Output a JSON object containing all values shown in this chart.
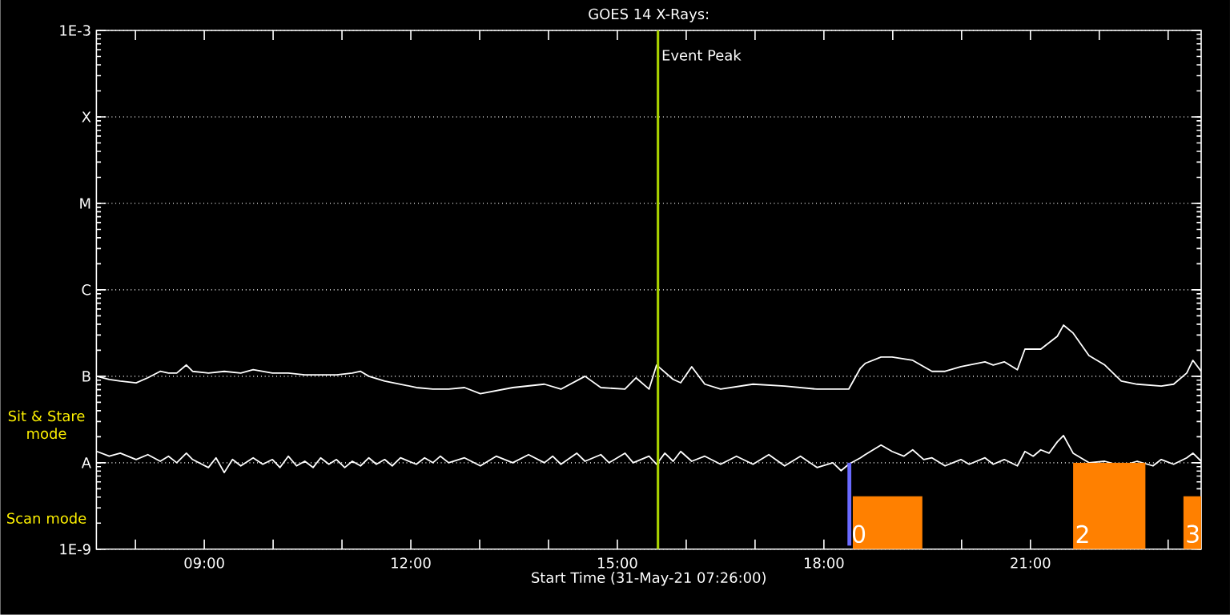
{
  "chart_data": {
    "type": "line",
    "title": "GOES 14 X-Rays:",
    "xlabel": "Start Time (31-May-21 07:26:00)",
    "log": "y",
    "grid": "y",
    "xlim": [
      7.433,
      23.48
    ],
    "ylim": [
      1e-09,
      0.001
    ],
    "xticks": [
      {
        "value": 8,
        "label": null
      },
      {
        "value": 9,
        "label": "09:00"
      },
      {
        "value": 10,
        "label": null
      },
      {
        "value": 11,
        "label": null
      },
      {
        "value": 12,
        "label": "12:00"
      },
      {
        "value": 13,
        "label": null
      },
      {
        "value": 14,
        "label": null
      },
      {
        "value": 15,
        "label": "15:00"
      },
      {
        "value": 16,
        "label": null
      },
      {
        "value": 17,
        "label": null
      },
      {
        "value": 18,
        "label": "18:00"
      },
      {
        "value": 19,
        "label": null
      },
      {
        "value": 20,
        "label": null
      },
      {
        "value": 21,
        "label": "21:00"
      },
      {
        "value": 22,
        "label": null
      },
      {
        "value": 23,
        "label": null
      }
    ],
    "yticks": [
      {
        "value": 1e-09,
        "label": "1E-9"
      },
      {
        "value": 1e-08,
        "label": "A"
      },
      {
        "value": 1e-07,
        "label": "B"
      },
      {
        "value": 1e-06,
        "label": "C"
      },
      {
        "value": 1e-05,
        "label": "M"
      },
      {
        "value": 0.0001,
        "label": "X"
      },
      {
        "value": 0.001,
        "label": "1E-3"
      }
    ],
    "series": [
      {
        "color": "#ffffff",
        "x": [
          7.44,
          7.62,
          7.78,
          8.01,
          8.18,
          8.36,
          8.48,
          8.6,
          8.74,
          8.83,
          9.06,
          9.29,
          9.53,
          9.71,
          9.99,
          10.22,
          10.46,
          10.69,
          10.92,
          11.15,
          11.27,
          11.39,
          11.62,
          11.85,
          12.08,
          12.32,
          12.55,
          12.78,
          13.01,
          13.48,
          13.94,
          14.18,
          14.53,
          14.76,
          15.11,
          15.27,
          15.46,
          15.57,
          15.81,
          15.92,
          16.08,
          16.27,
          16.5,
          16.97,
          17.43,
          17.9,
          18.36,
          18.53,
          18.6,
          18.83,
          18.99,
          19.29,
          19.57,
          19.76,
          19.99,
          20.34,
          20.46,
          20.62,
          20.81,
          20.92,
          21.15,
          21.39,
          21.48,
          21.62,
          21.85,
          22.08,
          22.32,
          22.55,
          22.9,
          23.08,
          23.27,
          23.36,
          23.48
        ],
        "values": [
          1e-07,
          9.2e-08,
          8.8e-08,
          8.4e-08,
          9.6e-08,
          1.14e-07,
          1.09e-07,
          1.09e-07,
          1.35e-07,
          1.14e-07,
          1.09e-07,
          1.14e-07,
          1.09e-07,
          1.19e-07,
          1.09e-07,
          1.09e-07,
          1.04e-07,
          1.04e-07,
          1.04e-07,
          1.09e-07,
          1.14e-07,
          1e-07,
          8.8e-08,
          8.1e-08,
          7.4e-08,
          7.1e-08,
          7.1e-08,
          7.4e-08,
          6.3e-08,
          7.4e-08,
          8.1e-08,
          7.1e-08,
          1e-07,
          7.4e-08,
          7.1e-08,
          9.6e-08,
          7.1e-08,
          1.35e-07,
          9.2e-08,
          8.4e-08,
          1.29e-07,
          8.1e-08,
          7.1e-08,
          8.1e-08,
          7.7e-08,
          7.1e-08,
          7.1e-08,
          1.24e-07,
          1.41e-07,
          1.67e-07,
          1.67e-07,
          1.53e-07,
          1.14e-07,
          1.14e-07,
          1.29e-07,
          1.47e-07,
          1.35e-07,
          1.47e-07,
          1.19e-07,
          2.06e-07,
          2.06e-07,
          2.9e-07,
          3.9e-07,
          3.16e-07,
          1.74e-07,
          1.35e-07,
          8.8e-08,
          8.1e-08,
          7.7e-08,
          8.1e-08,
          1.09e-07,
          1.53e-07,
          1.14e-07
        ]
      },
      {
        "color": "#ffffff",
        "x": [
          7.44,
          7.62,
          7.78,
          8.01,
          8.18,
          8.36,
          8.48,
          8.6,
          8.74,
          8.83,
          9.06,
          9.17,
          9.29,
          9.41,
          9.53,
          9.71,
          9.85,
          9.99,
          10.1,
          10.22,
          10.34,
          10.46,
          10.58,
          10.69,
          10.81,
          10.92,
          11.04,
          11.15,
          11.27,
          11.39,
          11.5,
          11.62,
          11.73,
          11.85,
          12.08,
          12.2,
          12.32,
          12.43,
          12.55,
          12.78,
          13.01,
          13.24,
          13.48,
          13.71,
          13.94,
          14.06,
          14.18,
          14.41,
          14.53,
          14.76,
          14.88,
          15.11,
          15.23,
          15.46,
          15.57,
          15.69,
          15.81,
          15.92,
          16.08,
          16.27,
          16.5,
          16.73,
          16.97,
          17.2,
          17.43,
          17.66,
          17.9,
          18.13,
          18.25,
          18.36,
          18.53,
          18.6,
          18.83,
          18.99,
          19.16,
          19.29,
          19.45,
          19.57,
          19.76,
          19.99,
          20.11,
          20.34,
          20.46,
          20.62,
          20.81,
          20.92,
          21.04,
          21.15,
          21.27,
          21.39,
          21.48,
          21.62,
          21.85,
          22.08,
          22.32,
          22.55,
          22.78,
          22.9,
          23.08,
          23.27,
          23.36,
          23.48
        ],
        "values": [
          1.35e-08,
          1.19e-08,
          1.29e-08,
          1.09e-08,
          1.24e-08,
          1.04e-08,
          1.19e-08,
          1e-08,
          1.29e-08,
          1.09e-08,
          8.8e-09,
          1.14e-08,
          7.7e-09,
          1.09e-08,
          9.2e-09,
          1.14e-08,
          9.6e-09,
          1.09e-08,
          8.8e-09,
          1.19e-08,
          9.2e-09,
          1.04e-08,
          8.8e-09,
          1.14e-08,
          9.6e-09,
          1.09e-08,
          8.8e-09,
          1.04e-08,
          9.2e-09,
          1.14e-08,
          9.6e-09,
          1.09e-08,
          9.2e-09,
          1.14e-08,
          9.6e-09,
          1.14e-08,
          1e-08,
          1.19e-08,
          1e-08,
          1.14e-08,
          9.2e-09,
          1.19e-08,
          1e-08,
          1.24e-08,
          1e-08,
          1.19e-08,
          9.6e-09,
          1.29e-08,
          1.04e-08,
          1.24e-08,
          1e-08,
          1.29e-08,
          1e-08,
          1.19e-08,
          9.6e-09,
          1.29e-08,
          1.04e-08,
          1.35e-08,
          1.04e-08,
          1.19e-08,
          9.6e-09,
          1.19e-08,
          9.6e-09,
          1.24e-08,
          9.2e-09,
          1.19e-08,
          8.8e-09,
          1e-08,
          8.1e-09,
          9.6e-09,
          1.14e-08,
          1.24e-08,
          1.6e-08,
          1.35e-08,
          1.19e-08,
          1.41e-08,
          1.09e-08,
          1.14e-08,
          9.2e-09,
          1.09e-08,
          9.6e-09,
          1.14e-08,
          9.6e-09,
          1.09e-08,
          9.2e-09,
          1.35e-08,
          1.19e-08,
          1.41e-08,
          1.29e-08,
          1.74e-08,
          2.06e-08,
          1.29e-08,
          1e-08,
          1.04e-08,
          9.2e-09,
          1.04e-08,
          9.2e-09,
          1.09e-08,
          9.6e-09,
          1.14e-08,
          1.29e-08,
          1.04e-08
        ]
      },
      {
        "type": "area",
        "color": "#ff8000",
        "x": [
          18.42,
          19.43
        ],
        "values": [
          4.1e-09,
          4.1e-09
        ]
      },
      {
        "type": "area",
        "color": "#ff8000",
        "x": [
          21.62,
          22.67
        ],
        "values": [
          1e-08,
          1e-08
        ]
      },
      {
        "type": "area",
        "color": "#ff8000",
        "x": [
          23.22,
          23.48
        ],
        "values": [
          4.1e-09,
          4.1e-09
        ]
      },
      {
        "type": "line",
        "color": "#6a6aff",
        "x": [
          18.37,
          18.37
        ],
        "values": [
          1.1e-09,
          1e-08
        ]
      }
    ],
    "ref_lines": [
      {
        "axis": "x",
        "value": 15.59,
        "label": "Event Peak",
        "color": "#a8d000"
      }
    ],
    "annotations": [
      "Sit & Stare mode",
      "Scan mode",
      {
        "text": "0",
        "x": 18.37,
        "y": 1.5e-09
      },
      {
        "text": "2",
        "x": 21.62,
        "y": 1.5e-09
      },
      {
        "text": "3",
        "x": 23.22,
        "y": 1.5e-09
      }
    ]
  }
}
